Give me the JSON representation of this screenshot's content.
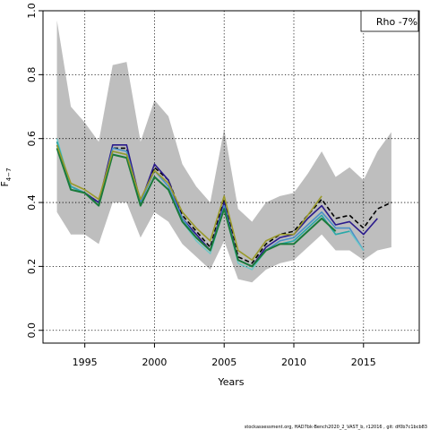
{
  "chart_data": {
    "type": "line",
    "title": "",
    "xlabel": "Years",
    "ylabel": "F",
    "ylabel_sub": "4−7",
    "xlim": [
      1992,
      2019
    ],
    "ylim": [
      -0.04,
      1.0
    ],
    "x_ticks": [
      1995,
      2000,
      2005,
      2010,
      2015
    ],
    "x_tick_labels": [
      "1995",
      "2000",
      "2005",
      "2010",
      "2015"
    ],
    "y_ticks": [
      0.0,
      0.2,
      0.4,
      0.6,
      0.8,
      1.0
    ],
    "y_tick_labels": [
      "0.0",
      "0.2",
      "0.4",
      "0.6",
      "0.8",
      "1.0"
    ],
    "grid": "dotted at ticks",
    "legend": {
      "position": "top-right",
      "text": "Rho -7%"
    },
    "footer": "stockassessment.org,  HAD7bk-Bench2020_2_VAST_b,  r12016 ,  git:  df0b7c1bcb83",
    "band": {
      "color": "#bebebe",
      "x": [
        1993,
        1994,
        1995,
        1996,
        1997,
        1998,
        1999,
        2000,
        2001,
        2002,
        2003,
        2004,
        2005,
        2006,
        2007,
        2008,
        2009,
        2010,
        2011,
        2012,
        2013,
        2014,
        2015,
        2016,
        2017
      ],
      "upper": [
        0.97,
        0.7,
        0.65,
        0.59,
        0.83,
        0.84,
        0.59,
        0.72,
        0.67,
        0.52,
        0.45,
        0.4,
        0.63,
        0.38,
        0.34,
        0.4,
        0.42,
        0.43,
        0.49,
        0.56,
        0.48,
        0.51,
        0.47,
        0.56,
        0.62
      ],
      "lower": [
        0.37,
        0.3,
        0.3,
        0.27,
        0.4,
        0.4,
        0.29,
        0.37,
        0.34,
        0.27,
        0.23,
        0.19,
        0.28,
        0.16,
        0.15,
        0.19,
        0.21,
        0.22,
        0.26,
        0.3,
        0.25,
        0.25,
        0.22,
        0.25,
        0.26
      ]
    },
    "series": [
      {
        "color": "#000000",
        "dashed": true,
        "width": 1.6,
        "x": [
          1993,
          1994,
          1995,
          1996,
          1997,
          1998,
          1999,
          2000,
          2001,
          2002,
          2003,
          2004,
          2005,
          2006,
          2007,
          2008,
          2009,
          2010,
          2011,
          2012,
          2013,
          2014,
          2015,
          2016,
          2017
        ],
        "values": [
          0.59,
          0.45,
          0.43,
          0.4,
          0.57,
          0.57,
          0.4,
          0.51,
          0.47,
          0.36,
          0.31,
          0.26,
          0.41,
          0.23,
          0.21,
          0.27,
          0.3,
          0.31,
          0.36,
          0.41,
          0.35,
          0.36,
          0.32,
          0.38,
          0.4
        ]
      },
      {
        "color": "#2a1a8c",
        "dashed": false,
        "width": 1.6,
        "x": [
          1993,
          1994,
          1995,
          1996,
          1997,
          1998,
          1999,
          2000,
          2001,
          2002,
          2003,
          2004,
          2005,
          2006,
          2007,
          2008,
          2009,
          2010,
          2011,
          2012,
          2013,
          2014,
          2015,
          2016
        ],
        "values": [
          0.58,
          0.45,
          0.43,
          0.4,
          0.58,
          0.58,
          0.4,
          0.52,
          0.47,
          0.35,
          0.3,
          0.25,
          0.4,
          0.22,
          0.2,
          0.26,
          0.29,
          0.3,
          0.35,
          0.39,
          0.33,
          0.34,
          0.3,
          0.35
        ]
      },
      {
        "color": "#4a90c8",
        "dashed": false,
        "width": 1.6,
        "x": [
          1993,
          1994,
          1995,
          1996,
          1997,
          1998,
          1999,
          2000,
          2001,
          2002,
          2003,
          2004,
          2005,
          2006,
          2007,
          2008,
          2009,
          2010,
          2011,
          2012,
          2013,
          2014,
          2015
        ],
        "values": [
          0.58,
          0.45,
          0.43,
          0.39,
          0.57,
          0.56,
          0.4,
          0.5,
          0.45,
          0.35,
          0.29,
          0.25,
          0.39,
          0.22,
          0.2,
          0.25,
          0.28,
          0.29,
          0.33,
          0.37,
          0.32,
          0.32,
          0.25
        ]
      },
      {
        "color": "#6bc8c8",
        "dashed": false,
        "width": 1.4,
        "x": [
          1993,
          1994,
          1995,
          1996,
          1997,
          1998,
          1999,
          2000,
          2001,
          2002,
          2003,
          2004,
          2005,
          2006,
          2007,
          2008,
          2009,
          2010,
          2011,
          2012,
          2013,
          2014,
          2015
        ],
        "values": [
          0.6,
          0.45,
          0.43,
          0.39,
          0.56,
          0.55,
          0.39,
          0.48,
          0.44,
          0.34,
          0.28,
          0.24,
          0.38,
          0.21,
          0.19,
          0.25,
          0.27,
          0.28,
          0.32,
          0.36,
          0.3,
          0.31,
          0.25
        ]
      },
      {
        "color": "#2aa8a8",
        "dashed": false,
        "width": 1.6,
        "x": [
          1993,
          1994,
          1995,
          1996,
          1997,
          1998,
          1999,
          2000,
          2001,
          2002,
          2003,
          2004,
          2005,
          2006,
          2007,
          2008,
          2009,
          2010,
          2011,
          2012,
          2013,
          2014
        ],
        "values": [
          0.59,
          0.45,
          0.43,
          0.39,
          0.56,
          0.55,
          0.39,
          0.48,
          0.44,
          0.34,
          0.29,
          0.25,
          0.38,
          0.22,
          0.2,
          0.25,
          0.27,
          0.28,
          0.32,
          0.36,
          0.3,
          0.31
        ]
      },
      {
        "color": "#1a7a3a",
        "dashed": false,
        "width": 2.0,
        "x": [
          1993,
          1994,
          1995,
          1996,
          1997,
          1998,
          1999,
          2000,
          2001,
          2002,
          2003,
          2004,
          2005,
          2006,
          2007,
          2008,
          2009,
          2010,
          2011,
          2012,
          2013
        ],
        "values": [
          0.57,
          0.44,
          0.43,
          0.39,
          0.55,
          0.54,
          0.39,
          0.48,
          0.44,
          0.34,
          0.29,
          0.25,
          0.38,
          0.22,
          0.2,
          0.25,
          0.27,
          0.27,
          0.31,
          0.35,
          0.31
        ]
      },
      {
        "color": "#9a9a2a",
        "dashed": false,
        "width": 1.6,
        "x": [
          1993,
          1994,
          1995,
          1996,
          1997,
          1998,
          1999,
          2000,
          2001,
          2002,
          2003,
          2004,
          2005,
          2006,
          2007,
          2008,
          2009,
          2010,
          2011,
          2012
        ],
        "values": [
          0.58,
          0.46,
          0.44,
          0.41,
          0.56,
          0.55,
          0.41,
          0.5,
          0.46,
          0.37,
          0.32,
          0.28,
          0.42,
          0.25,
          0.22,
          0.28,
          0.3,
          0.3,
          0.36,
          0.42
        ]
      }
    ]
  }
}
